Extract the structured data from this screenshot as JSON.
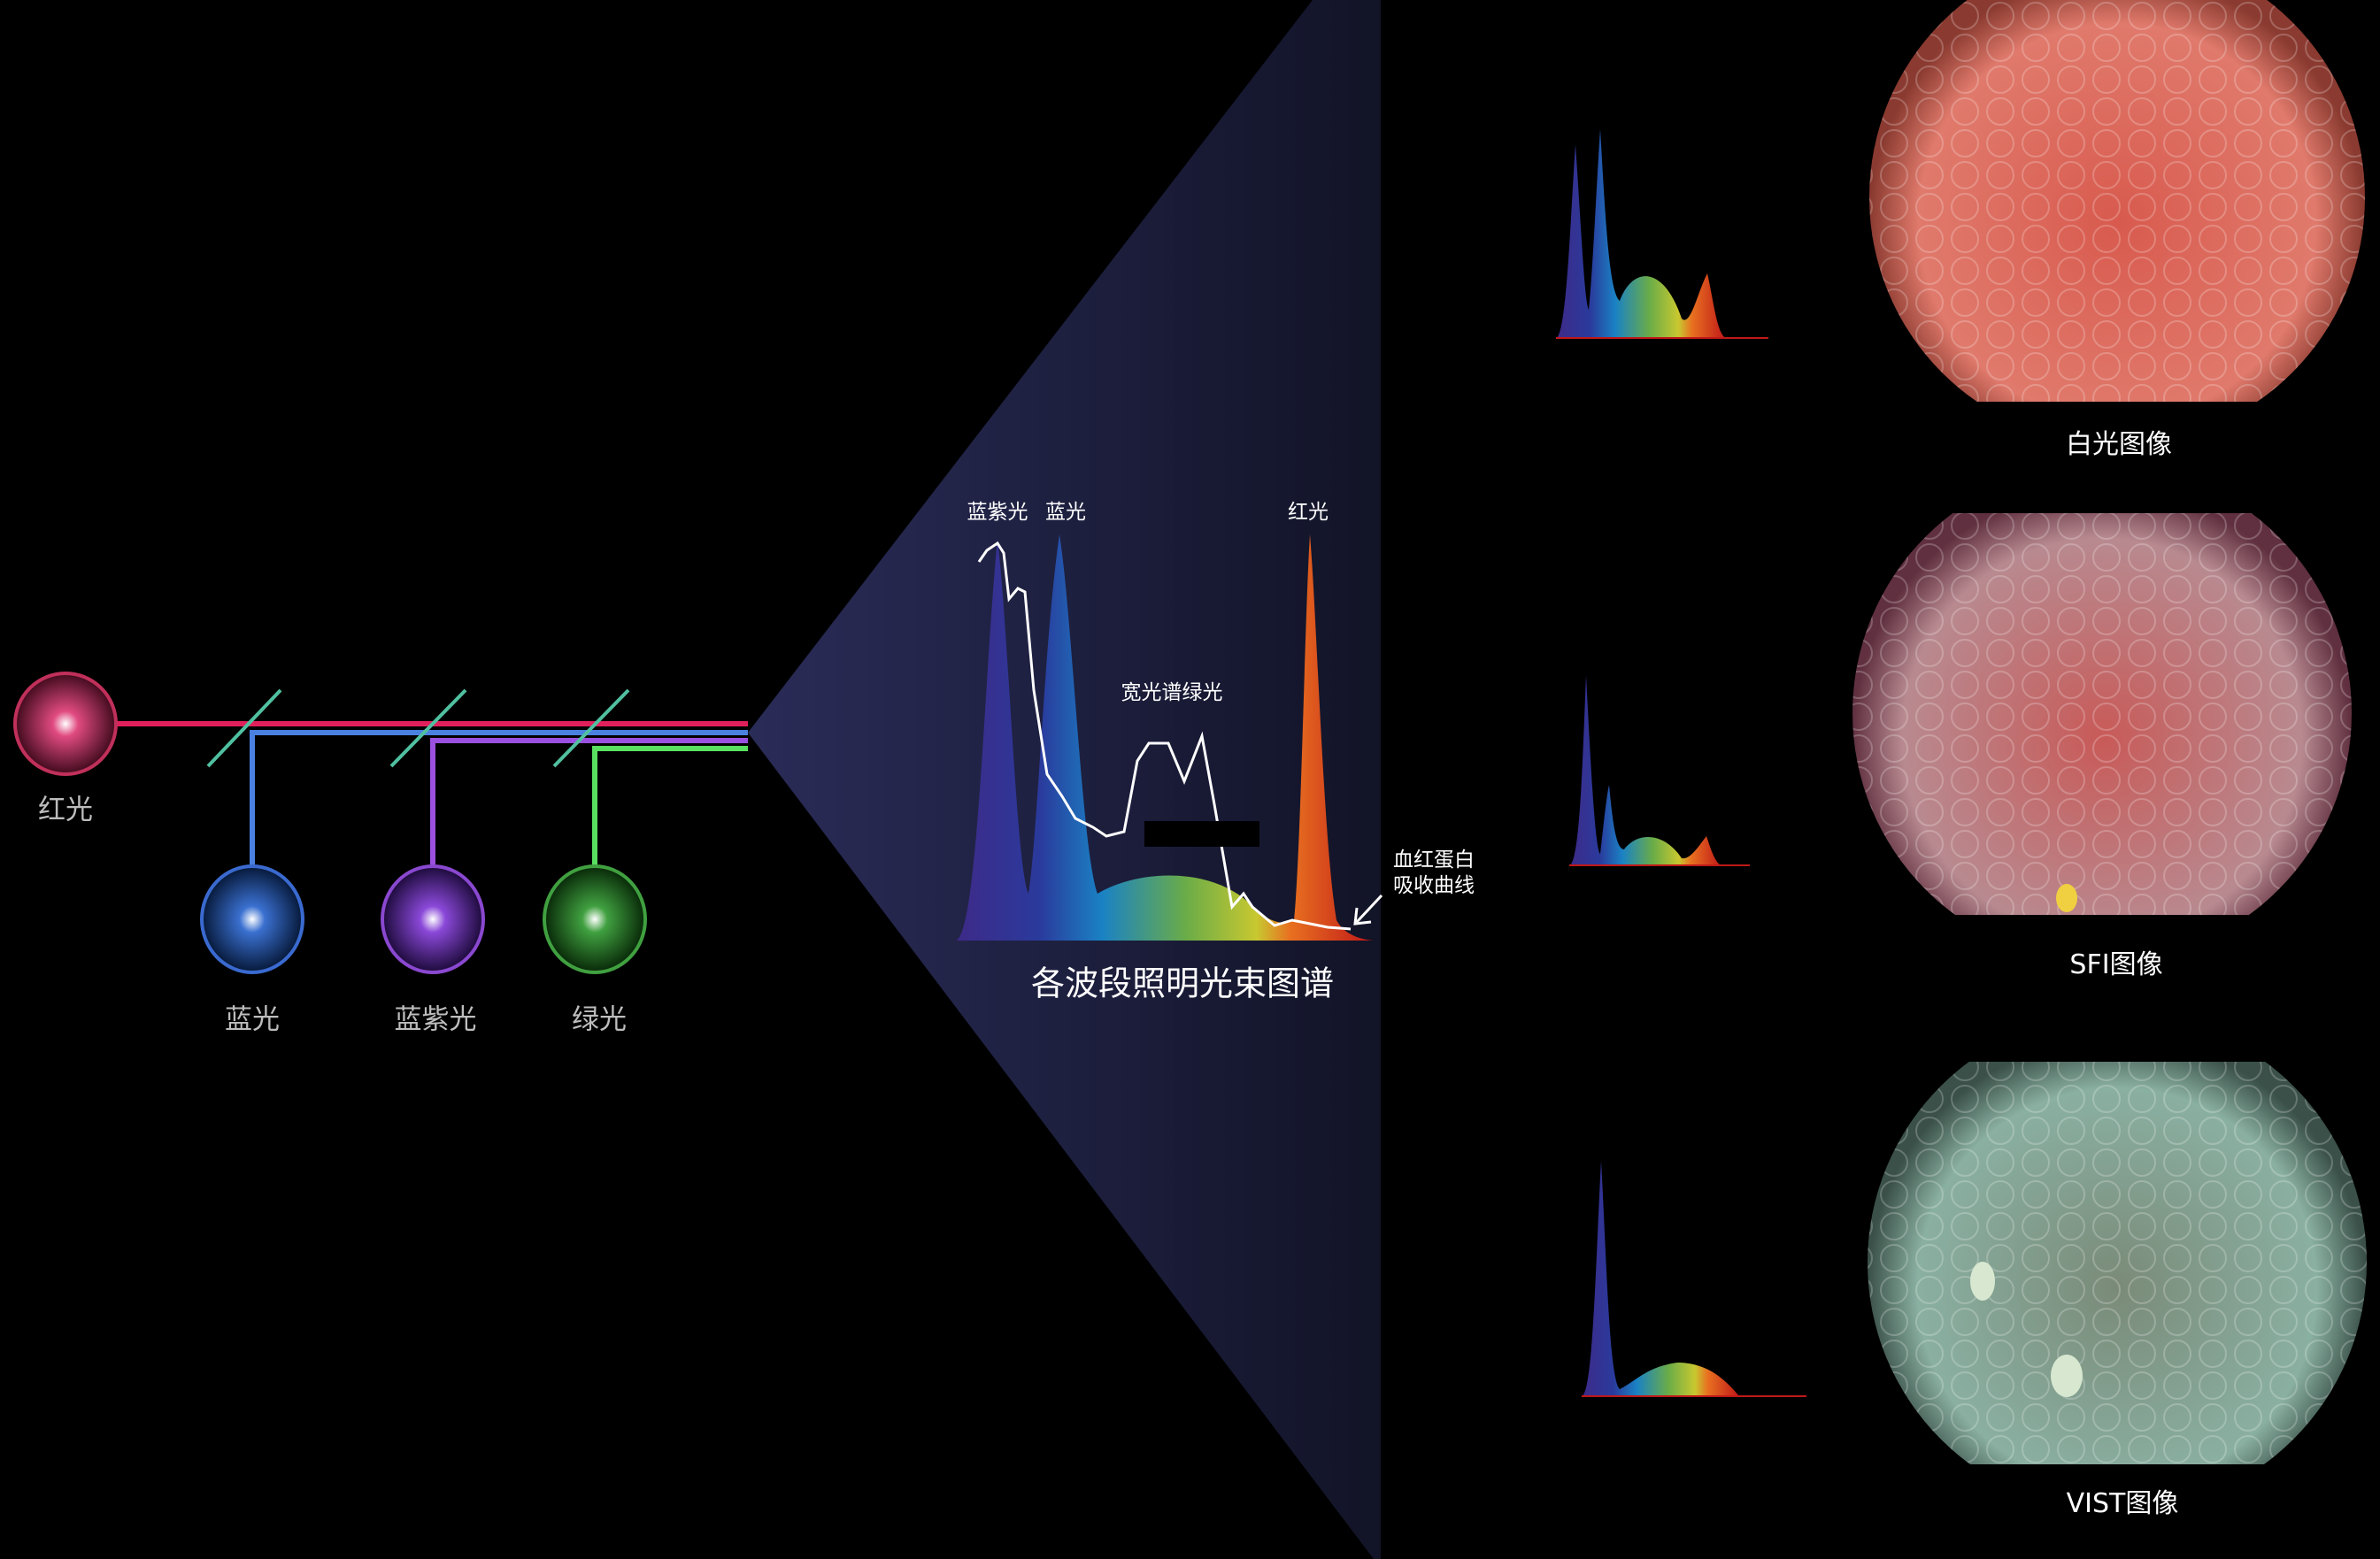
{
  "light_sources": [
    {
      "label": "红光",
      "color": "#e0205a"
    },
    {
      "label": "蓝光",
      "color": "#4a80e0"
    },
    {
      "label": "蓝紫光",
      "color": "#9a50e0"
    },
    {
      "label": "绿光",
      "color": "#5ae060"
    }
  ],
  "spectrum": {
    "title": "各波段照明光束图谱",
    "peak_labels": {
      "violet": "蓝紫光",
      "blue": "蓝光",
      "red": "红光",
      "green": "宽光谱绿光"
    },
    "hemoglobin_label_line1": "血红蛋白",
    "hemoglobin_label_line2": "吸收曲线"
  },
  "modes": [
    {
      "label": "白光图像",
      "tint": "#d9685c"
    },
    {
      "label": "SFI图像",
      "tint": "#c86a68"
    },
    {
      "label": "VIST图像",
      "tint": "#7fa89a"
    }
  ]
}
